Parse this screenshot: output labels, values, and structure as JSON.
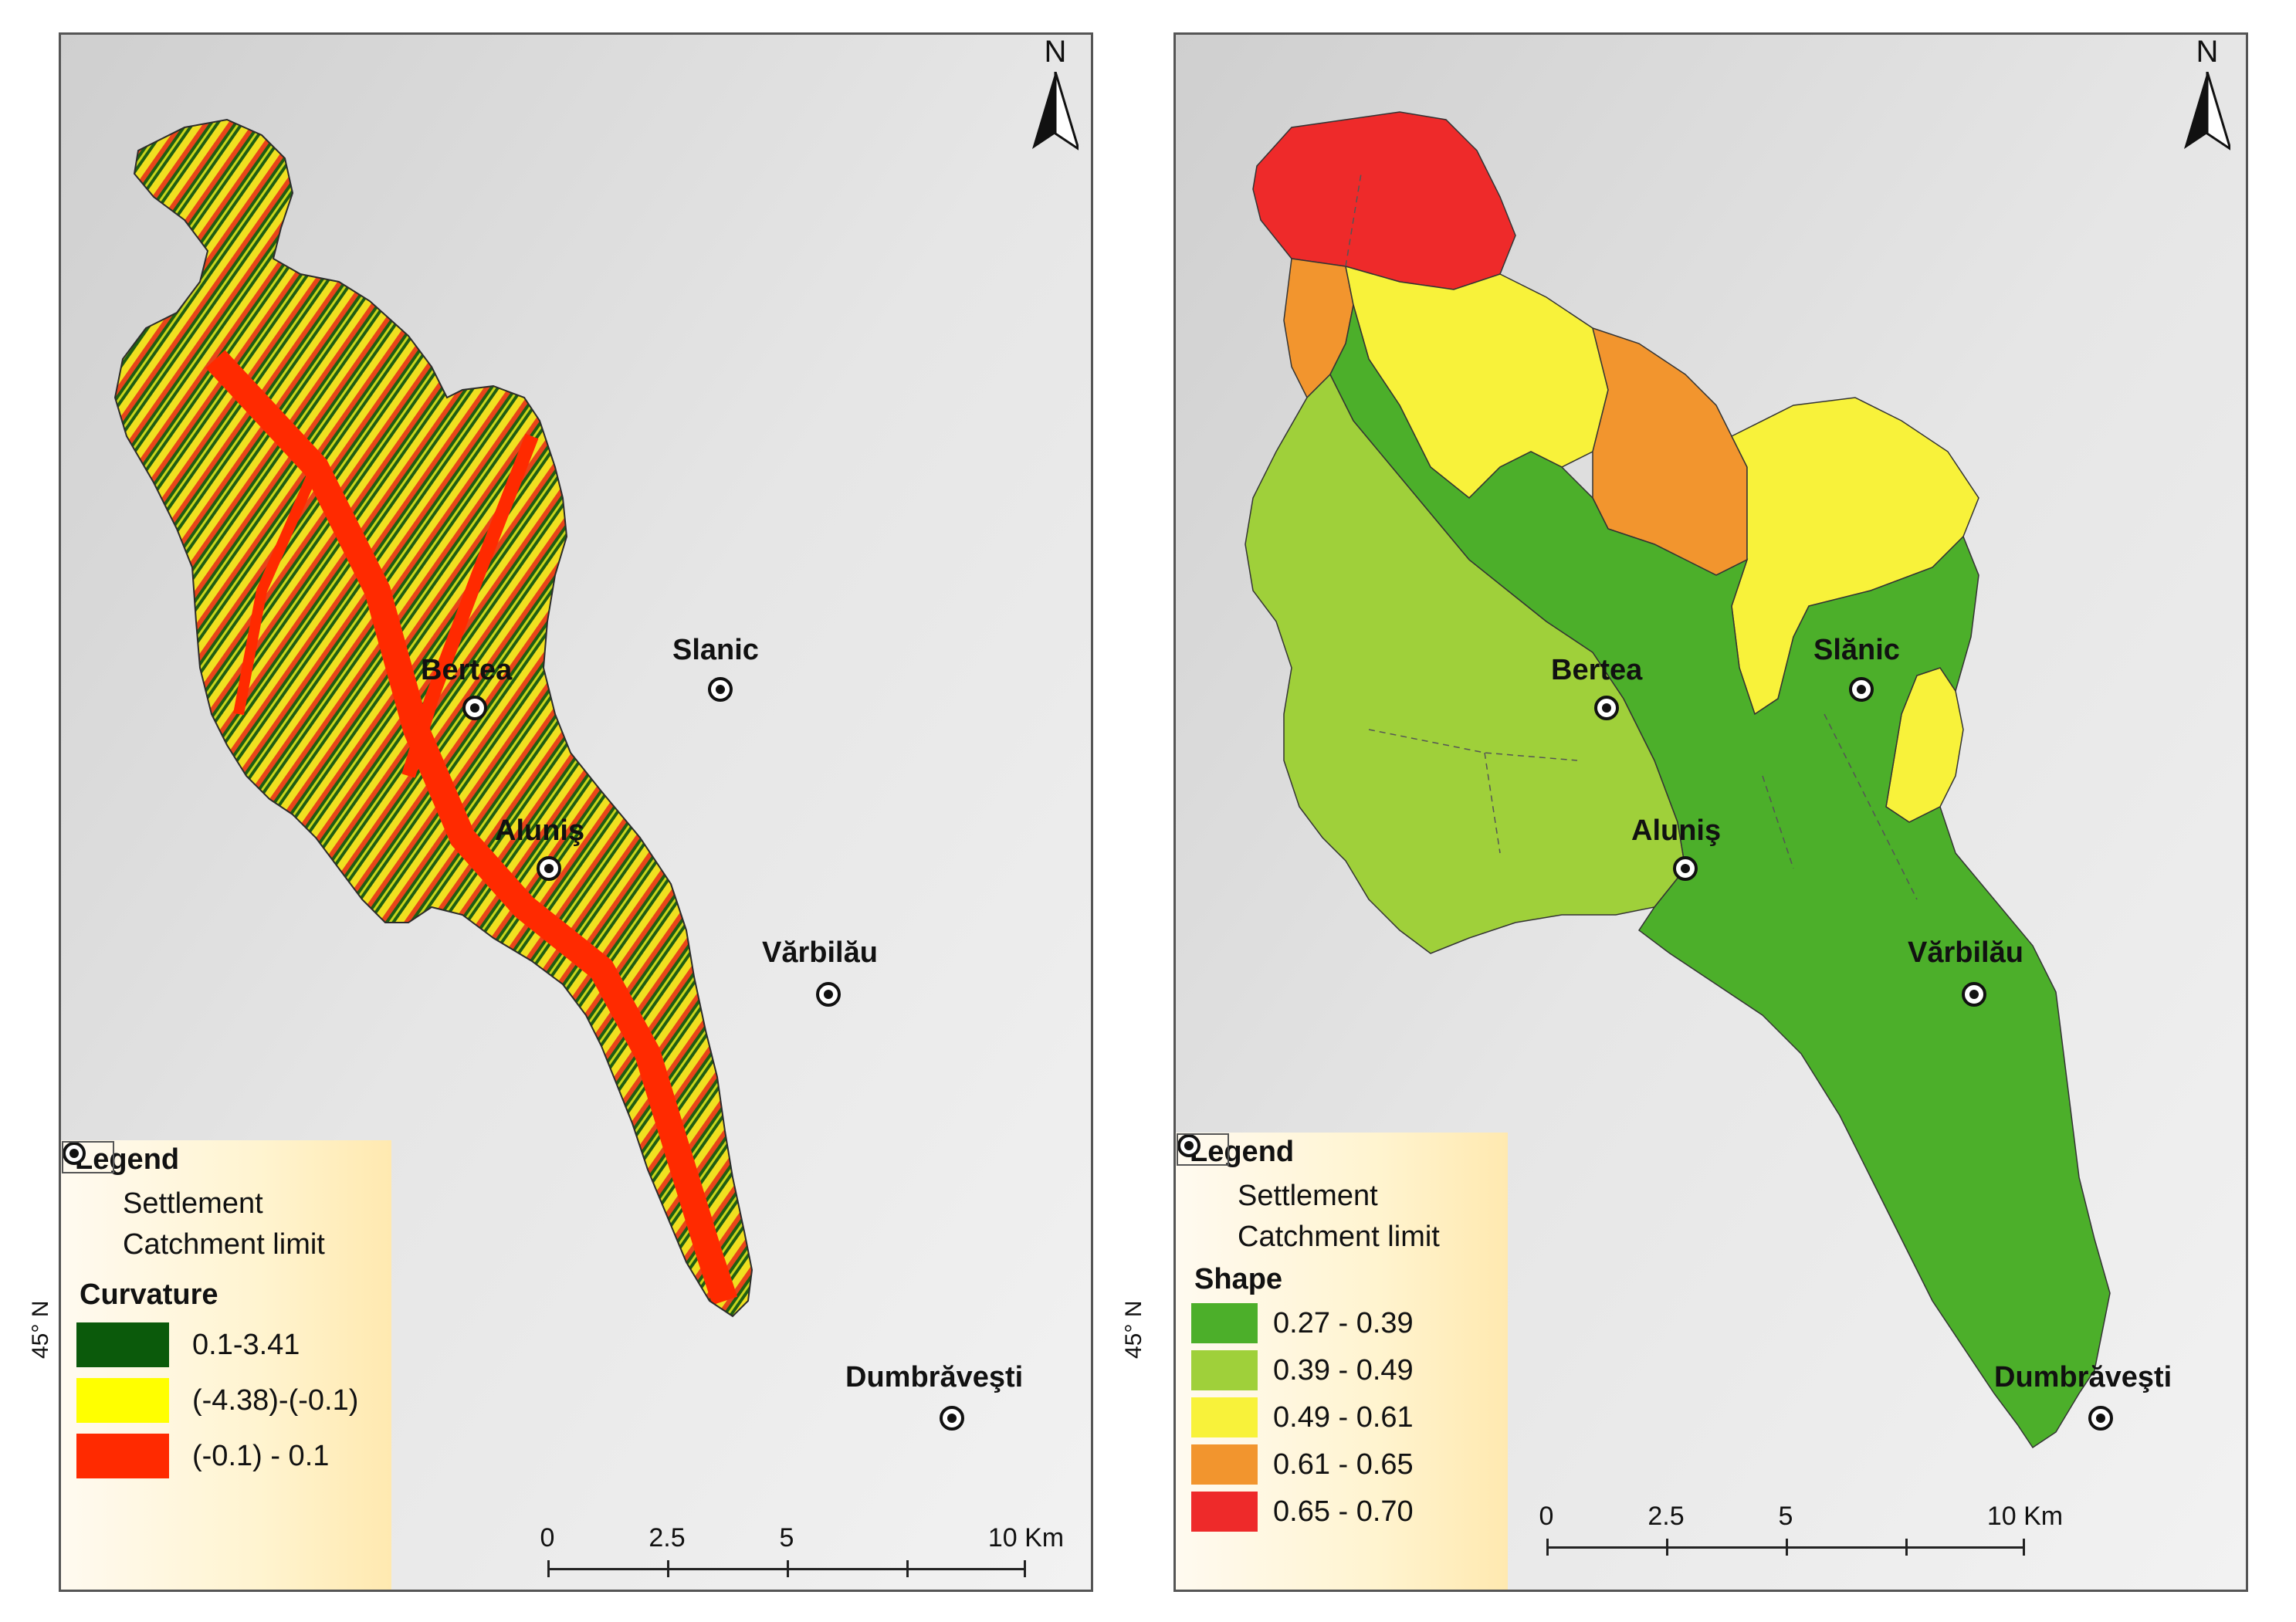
{
  "north_label": "N",
  "lat_label": "45° N",
  "left_map": {
    "legend_title": "Legend",
    "settlement_label": "Settlement",
    "catchment_label": "Catchment limit",
    "class_title": "Curvature",
    "classes": [
      {
        "label": "0.1-3.41",
        "color": "#0b5a0b"
      },
      {
        "label": "(-4.38)-(-0.1)",
        "color": "#ffff00"
      },
      {
        "label": "(-0.1) - 0.1",
        "color": "#ff2a00"
      }
    ],
    "scale": {
      "ticks": [
        "0",
        "2.5",
        "5",
        "10 Km"
      ]
    },
    "settlements": [
      "Bertea",
      "Slanic",
      "Aluniş",
      "Vărbilău",
      "Dumbrăveşti"
    ]
  },
  "right_map": {
    "legend_title": "Legend",
    "settlement_label": "Settlement",
    "catchment_label": "Catchment limit",
    "class_title": "Shape",
    "classes": [
      {
        "label": "0.27 - 0.39",
        "color": "#4caf2a"
      },
      {
        "label": "0.39 - 0.49",
        "color": "#9fd03a"
      },
      {
        "label": "0.49 - 0.61",
        "color": "#f8f23a"
      },
      {
        "label": "0.61 - 0.65",
        "color": "#f2952e"
      },
      {
        "label": "0.65 - 0.70",
        "color": "#ee2a2a"
      }
    ],
    "scale": {
      "ticks": [
        "0",
        "2.5",
        "5",
        "10 Km"
      ]
    },
    "settlements": [
      "Bertea",
      "Slănic",
      "Aluniş",
      "Vărbilău",
      "Dumbrăveşti"
    ]
  }
}
